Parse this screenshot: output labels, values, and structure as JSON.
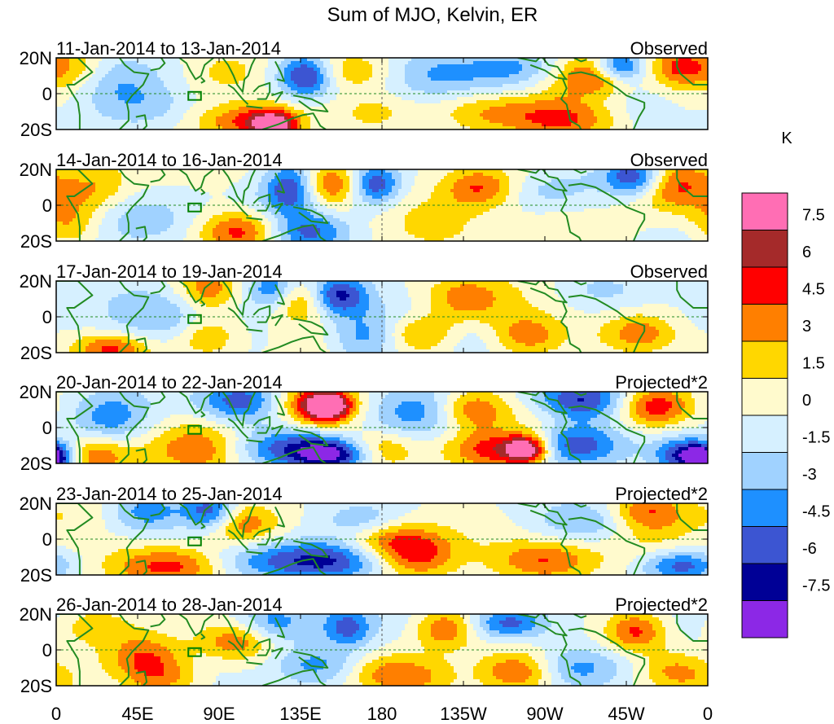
{
  "chart_data": {
    "type": "heatmap",
    "title": "Sum of MJO, Kelvin, ER",
    "units": "K",
    "x_ticks": [
      "0",
      "45E",
      "90E",
      "135E",
      "180",
      "135W",
      "90W",
      "45W",
      "0"
    ],
    "lon_range": [
      0,
      360
    ],
    "y_ticks": [
      "20N",
      "0",
      "20S"
    ],
    "lat_range": [
      -20,
      20
    ],
    "colorbar": {
      "labels": [
        "7.5",
        "6",
        "4.5",
        "3",
        "1.5",
        "0",
        "-1.5",
        "-3",
        "-4.5",
        "-6",
        "-7.5"
      ],
      "levels": [
        7.5,
        6,
        4.5,
        3,
        1.5,
        0,
        -1.5,
        -3,
        -4.5,
        -6,
        -7.5
      ],
      "colors": [
        "#ff6eb4",
        "#a52a2a",
        "#ff0000",
        "#ff7f00",
        "#ffd700",
        "#fffacd",
        "#d6f0ff",
        "#a0d2ff",
        "#1e90ff",
        "#3c55d2",
        "#000096",
        "#8c28e6"
      ]
    },
    "colors": {
      "coast": "#228b22",
      "box": "#008000",
      "guide": "#228b22"
    },
    "panels": [
      {
        "date_range": "11-Jan-2014 to 13-Jan-2014",
        "kind": "Observed",
        "seed": 11,
        "blobs": [
          [
            10,
            15,
            3,
            12,
            10
          ],
          [
            35,
            5,
            -3,
            20,
            12
          ],
          [
            95,
            12,
            2,
            15,
            9
          ],
          [
            105,
            -15,
            4.5,
            20,
            7
          ],
          [
            120,
            -18,
            8,
            9,
            6
          ],
          [
            138,
            10,
            -6,
            10,
            8
          ],
          [
            165,
            12,
            3,
            15,
            8
          ],
          [
            175,
            -10,
            2,
            15,
            8
          ],
          [
            215,
            10,
            -4,
            20,
            10
          ],
          [
            240,
            -10,
            3,
            20,
            8
          ],
          [
            280,
            -15,
            5,
            20,
            8
          ],
          [
            300,
            10,
            6,
            12,
            8
          ],
          [
            310,
            15,
            -7,
            10,
            6
          ],
          [
            255,
            12,
            -2,
            15,
            8
          ],
          [
            345,
            15,
            5,
            12,
            8
          ],
          [
            60,
            -8,
            -2,
            20,
            8
          ]
        ]
      },
      {
        "date_range": "14-Jan-2014 to 16-Jan-2014",
        "kind": "Observed",
        "seed": 14,
        "blobs": [
          [
            20,
            8,
            3,
            15,
            10
          ],
          [
            5,
            -12,
            4,
            12,
            10
          ],
          [
            100,
            -15,
            5,
            15,
            8
          ],
          [
            130,
            10,
            -6,
            10,
            10
          ],
          [
            140,
            -15,
            -5,
            15,
            8
          ],
          [
            155,
            12,
            4.5,
            15,
            8
          ],
          [
            175,
            12,
            -7,
            10,
            8
          ],
          [
            210,
            -10,
            3,
            20,
            10
          ],
          [
            235,
            10,
            5,
            15,
            8
          ],
          [
            320,
            15,
            -7.5,
            12,
            8
          ],
          [
            340,
            12,
            5,
            15,
            10
          ],
          [
            270,
            10,
            -2,
            20,
            8
          ],
          [
            50,
            -8,
            -2,
            20,
            10
          ]
        ]
      },
      {
        "date_range": "17-Jan-2014 to 19-Jan-2014",
        "kind": "Observed",
        "seed": 17,
        "blobs": [
          [
            30,
            -18,
            5,
            15,
            6
          ],
          [
            85,
            15,
            3,
            10,
            8
          ],
          [
            85,
            -10,
            3,
            12,
            8
          ],
          [
            120,
            15,
            -5,
            10,
            8
          ],
          [
            135,
            10,
            4.5,
            12,
            8
          ],
          [
            155,
            12,
            -7,
            12,
            8
          ],
          [
            170,
            -10,
            -4,
            15,
            10
          ],
          [
            200,
            -10,
            4,
            15,
            8
          ],
          [
            225,
            12,
            3,
            15,
            8
          ],
          [
            230,
            -12,
            -1.5,
            15,
            8
          ],
          [
            260,
            -10,
            4,
            15,
            8
          ],
          [
            325,
            -8,
            4,
            15,
            8
          ],
          [
            300,
            15,
            -2,
            20,
            8
          ],
          [
            55,
            5,
            -2,
            20,
            10
          ]
        ]
      },
      {
        "date_range": "20-Jan-2014 to 22-Jan-2014",
        "kind": "Projected*2",
        "seed": 20,
        "blobs": [
          [
            30,
            5,
            -4,
            15,
            10
          ],
          [
            20,
            -15,
            5,
            15,
            8
          ],
          [
            0,
            -18,
            -6,
            8,
            6
          ],
          [
            80,
            -12,
            5,
            20,
            10
          ],
          [
            100,
            15,
            -5,
            15,
            8
          ],
          [
            125,
            -12,
            -5,
            25,
            8
          ],
          [
            145,
            12,
            6,
            15,
            10
          ],
          [
            150,
            12,
            8,
            8,
            5
          ],
          [
            155,
            -15,
            -8,
            15,
            6
          ],
          [
            175,
            -12,
            5,
            15,
            8
          ],
          [
            205,
            10,
            -5,
            20,
            10
          ],
          [
            230,
            10,
            5,
            15,
            8
          ],
          [
            245,
            -12,
            6,
            20,
            8
          ],
          [
            260,
            -12,
            8,
            8,
            5
          ],
          [
            285,
            -10,
            -6,
            20,
            8
          ],
          [
            290,
            15,
            -7,
            20,
            8
          ],
          [
            330,
            12,
            6,
            15,
            8
          ],
          [
            350,
            -15,
            -6,
            12,
            6
          ]
        ]
      },
      {
        "date_range": "23-Jan-2014 to 25-Jan-2014",
        "kind": "Projected*2",
        "seed": 23,
        "blobs": [
          [
            50,
            15,
            -4,
            15,
            8
          ],
          [
            65,
            -15,
            5,
            20,
            8
          ],
          [
            85,
            15,
            -6,
            10,
            8
          ],
          [
            100,
            8,
            4,
            15,
            8
          ],
          [
            120,
            -12,
            -4,
            25,
            8
          ],
          [
            155,
            -12,
            -5,
            20,
            8
          ],
          [
            170,
            8,
            -4,
            15,
            8
          ],
          [
            185,
            0,
            4.5,
            20,
            8
          ],
          [
            200,
            -10,
            4,
            15,
            8
          ],
          [
            270,
            -12,
            4.5,
            20,
            8
          ],
          [
            295,
            10,
            -3,
            20,
            8
          ],
          [
            325,
            15,
            4.5,
            15,
            8
          ],
          [
            345,
            -15,
            -5,
            15,
            6
          ]
        ]
      },
      {
        "date_range": "26-Jan-2014 to 28-Jan-2014",
        "kind": "Projected*2",
        "seed": 26,
        "blobs": [
          [
            20,
            12,
            3,
            15,
            8
          ],
          [
            50,
            0,
            3,
            15,
            8
          ],
          [
            60,
            -15,
            4,
            15,
            8
          ],
          [
            100,
            5,
            4.5,
            15,
            8
          ],
          [
            120,
            15,
            -4,
            15,
            8
          ],
          [
            150,
            -8,
            -4,
            20,
            8
          ],
          [
            160,
            12,
            -6,
            10,
            8
          ],
          [
            175,
            -12,
            4,
            15,
            8
          ],
          [
            200,
            -15,
            3,
            15,
            8
          ],
          [
            215,
            12,
            4.5,
            12,
            8
          ],
          [
            250,
            15,
            -5,
            15,
            6
          ],
          [
            255,
            -12,
            4.5,
            15,
            8
          ],
          [
            285,
            -10,
            -3,
            15,
            8
          ],
          [
            320,
            10,
            5,
            12,
            8
          ],
          [
            340,
            -12,
            4,
            15,
            8
          ]
        ]
      }
    ]
  }
}
